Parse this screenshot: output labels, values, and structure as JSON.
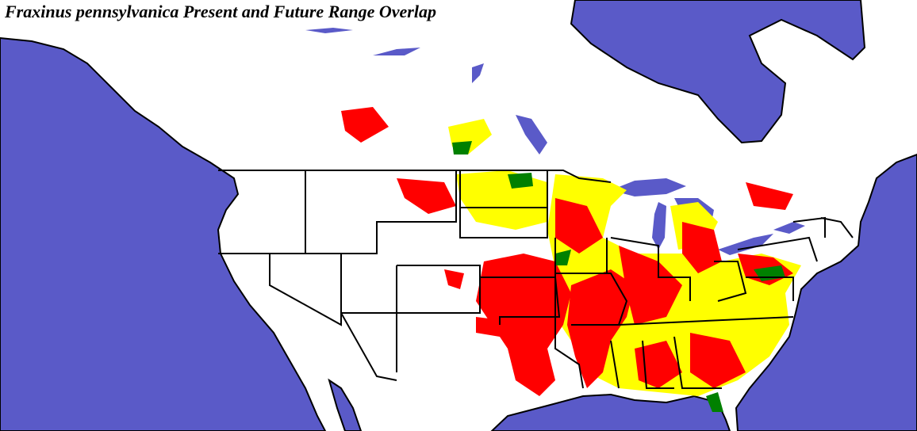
{
  "title": "Fraxinus pennsylvanica Present and Future Range Overlap"
}
